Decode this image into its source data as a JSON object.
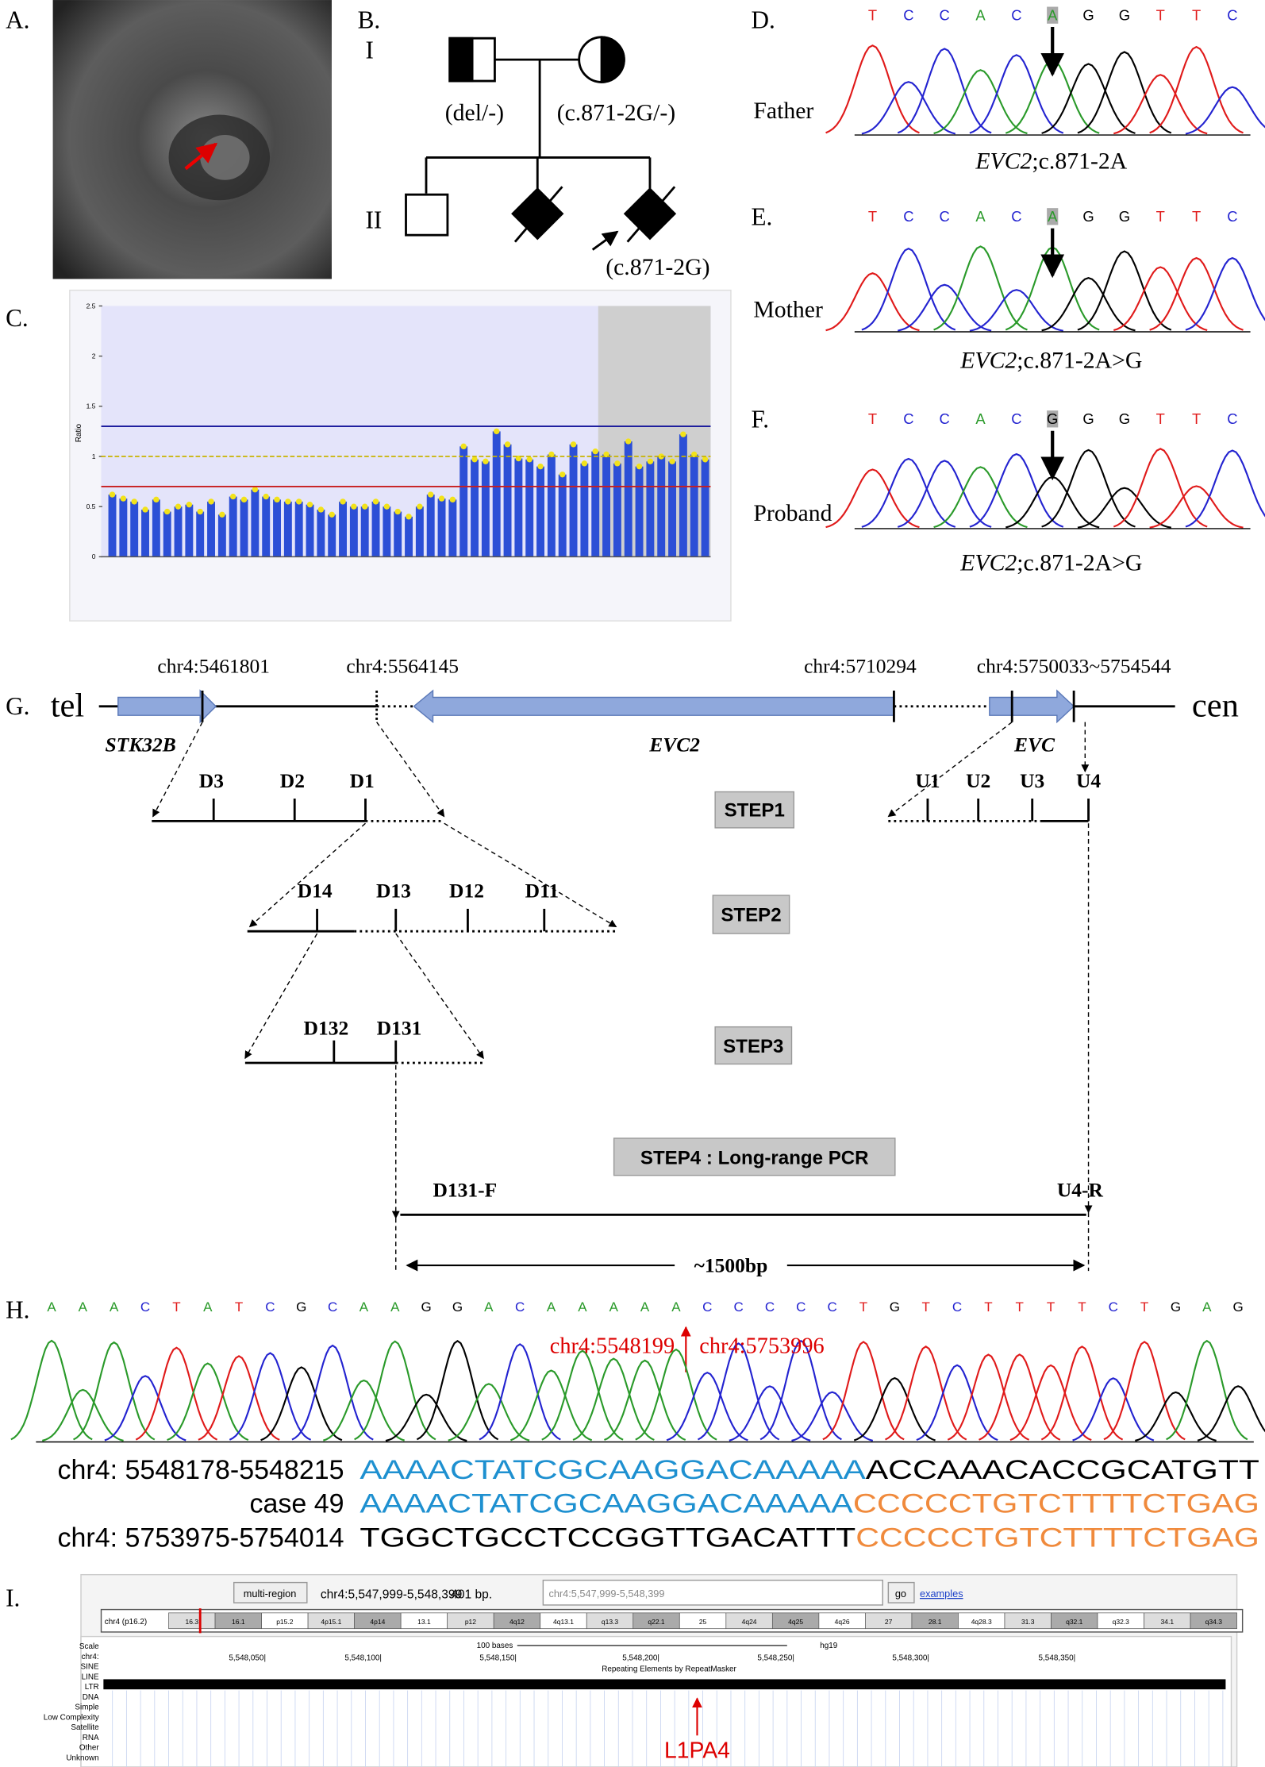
{
  "panel_labels": [
    "A.",
    "B.",
    "C.",
    "D.",
    "E.",
    "F.",
    "G.",
    "H.",
    "I."
  ],
  "pedigree": {
    "generations": [
      "I",
      "II"
    ],
    "father_genotype": "(del/-)",
    "mother_genotype": "(c.871-2G/-)",
    "proband_genotype": "(c.871-2G)"
  },
  "mlpa": {
    "y_label": "Ratio",
    "ylim": [
      0,
      2.5
    ],
    "yticks": [
      0,
      0.5,
      1,
      1.5,
      2,
      2.5
    ],
    "values": [
      0.62,
      0.58,
      0.55,
      0.47,
      0.57,
      0.45,
      0.5,
      0.52,
      0.45,
      0.55,
      0.42,
      0.6,
      0.57,
      0.67,
      0.6,
      0.57,
      0.55,
      0.55,
      0.52,
      0.47,
      0.42,
      0.55,
      0.5,
      0.5,
      0.55,
      0.5,
      0.45,
      0.4,
      0.5,
      0.62,
      0.58,
      0.57,
      1.1,
      0.97,
      0.95,
      1.25,
      1.12,
      0.98,
      0.97,
      0.9,
      1.02,
      0.82,
      1.12,
      0.93,
      1.05,
      1.02,
      0.93,
      1.15,
      0.9,
      0.95,
      1.0,
      0.95,
      1.22,
      1.02,
      0.97
    ],
    "thresholds": [
      {
        "value": 1.3,
        "color": "#1a1a9c"
      },
      {
        "value": 1.0,
        "color": "#c8b400"
      },
      {
        "value": 0.7,
        "color": "#c81e1e"
      }
    ]
  },
  "sanger": [
    {
      "person": "Father",
      "bases": [
        "T",
        "C",
        "C",
        "A",
        "C",
        "A",
        "G",
        "G",
        "T",
        "T",
        "C"
      ],
      "gene": "EVC2",
      "variant": ";c.871-2A"
    },
    {
      "person": "Mother",
      "bases": [
        "T",
        "C",
        "C",
        "A",
        "C",
        "A",
        "G",
        "G",
        "T",
        "T",
        "C"
      ],
      "gene": "EVC2",
      "variant": ";c.871-2A>G"
    },
    {
      "person": "Proband",
      "bases": [
        "T",
        "C",
        "C",
        "A",
        "C",
        "G",
        "G",
        "G",
        "T",
        "T",
        "C"
      ],
      "gene": "EVC2",
      "variant": ";c.871-2A>G"
    }
  ],
  "schematic": {
    "tel": "tel",
    "cen": "cen",
    "coords": [
      "chr4:5461801",
      "chr4:5564145",
      "chr4:5710294",
      "chr4:5750033~5754544"
    ],
    "genes": [
      "STK32B",
      "EVC2",
      "EVC"
    ],
    "step1_down": [
      "D3",
      "D2",
      "D1"
    ],
    "step1_up": [
      "U1",
      "U2",
      "U3",
      "U4"
    ],
    "step1": "STEP1",
    "step2_markers": [
      "D14",
      "D13",
      "D12",
      "D11"
    ],
    "step2": "STEP2",
    "step3_markers": [
      "D132",
      "D131"
    ],
    "step3": "STEP3",
    "step4": "STEP4 : Long-range PCR",
    "forward": "D131-F",
    "reverse": "U4-R",
    "size": "~1500bp"
  },
  "junction": {
    "bases": [
      "A",
      "A",
      "A",
      "C",
      "T",
      "A",
      "T",
      "C",
      "G",
      "C",
      "A",
      "A",
      "G",
      "G",
      "A",
      "C",
      "A",
      "A",
      "A",
      "A",
      "A",
      "C",
      "C",
      "C",
      "C",
      "C",
      "T",
      "G",
      "T",
      "C",
      "T",
      "T",
      "T",
      "T",
      "C",
      "T",
      "G",
      "A",
      "G"
    ],
    "left_breakpoint": "chr4:5548199",
    "right_breakpoint": "chr4:5753996",
    "rows": [
      {
        "label": "chr4: 5548178-5548215",
        "first": "AAAACTATCGCAAGGACAAAAA",
        "second": "ACCAAACACCGCATGTT"
      },
      {
        "label": "case 49",
        "first": "AAAACTATCGCAAGGACAAAAA",
        "second": "CCCCCTGTCTTTTCTGAG"
      },
      {
        "label": "chr4: 5753975-5754014",
        "first": "TGGCTGCCTCCGGTTGACATTT",
        "second": "CCCCCTGTCTTTTCTGAG"
      }
    ]
  },
  "browser": {
    "button": "multi-region",
    "position": "chr4:5,547,999-5,548,399",
    "size": "401 bp.",
    "search": "chr4:5,547,999-5,548,399",
    "go": "go",
    "examples": "examples",
    "chromosome": "chr4 (p16.2)",
    "bands": [
      "16.3",
      "16.1",
      "p15.2",
      "4p15.1",
      "4p14",
      "13.1",
      "p12",
      "4q12",
      "4q13.1",
      "q13.3",
      "q22.1",
      "25",
      "4q24",
      "4q25",
      "4q26",
      "27",
      "28.1",
      "4q28.3",
      "31.3",
      "q32.1",
      "q32.3",
      "34.1",
      "q34.3"
    ],
    "track_labels": [
      "Scale",
      "chr4:",
      "SINE",
      "LINE",
      "LTR",
      "DNA",
      "Simple",
      "Low Complexity",
      "Satellite",
      "RNA",
      "Other",
      "Unknown"
    ],
    "scale_bar": "100 bases",
    "assembly": "hg19",
    "positions": [
      "5,548,050|",
      "5,548,100|",
      "5,548,150|",
      "5,548,200|",
      "5,548,250|",
      "5,548,300|",
      "5,548,350|"
    ],
    "track_title": "Repeating Elements by RepeatMasker",
    "element": "L1PA4"
  }
}
